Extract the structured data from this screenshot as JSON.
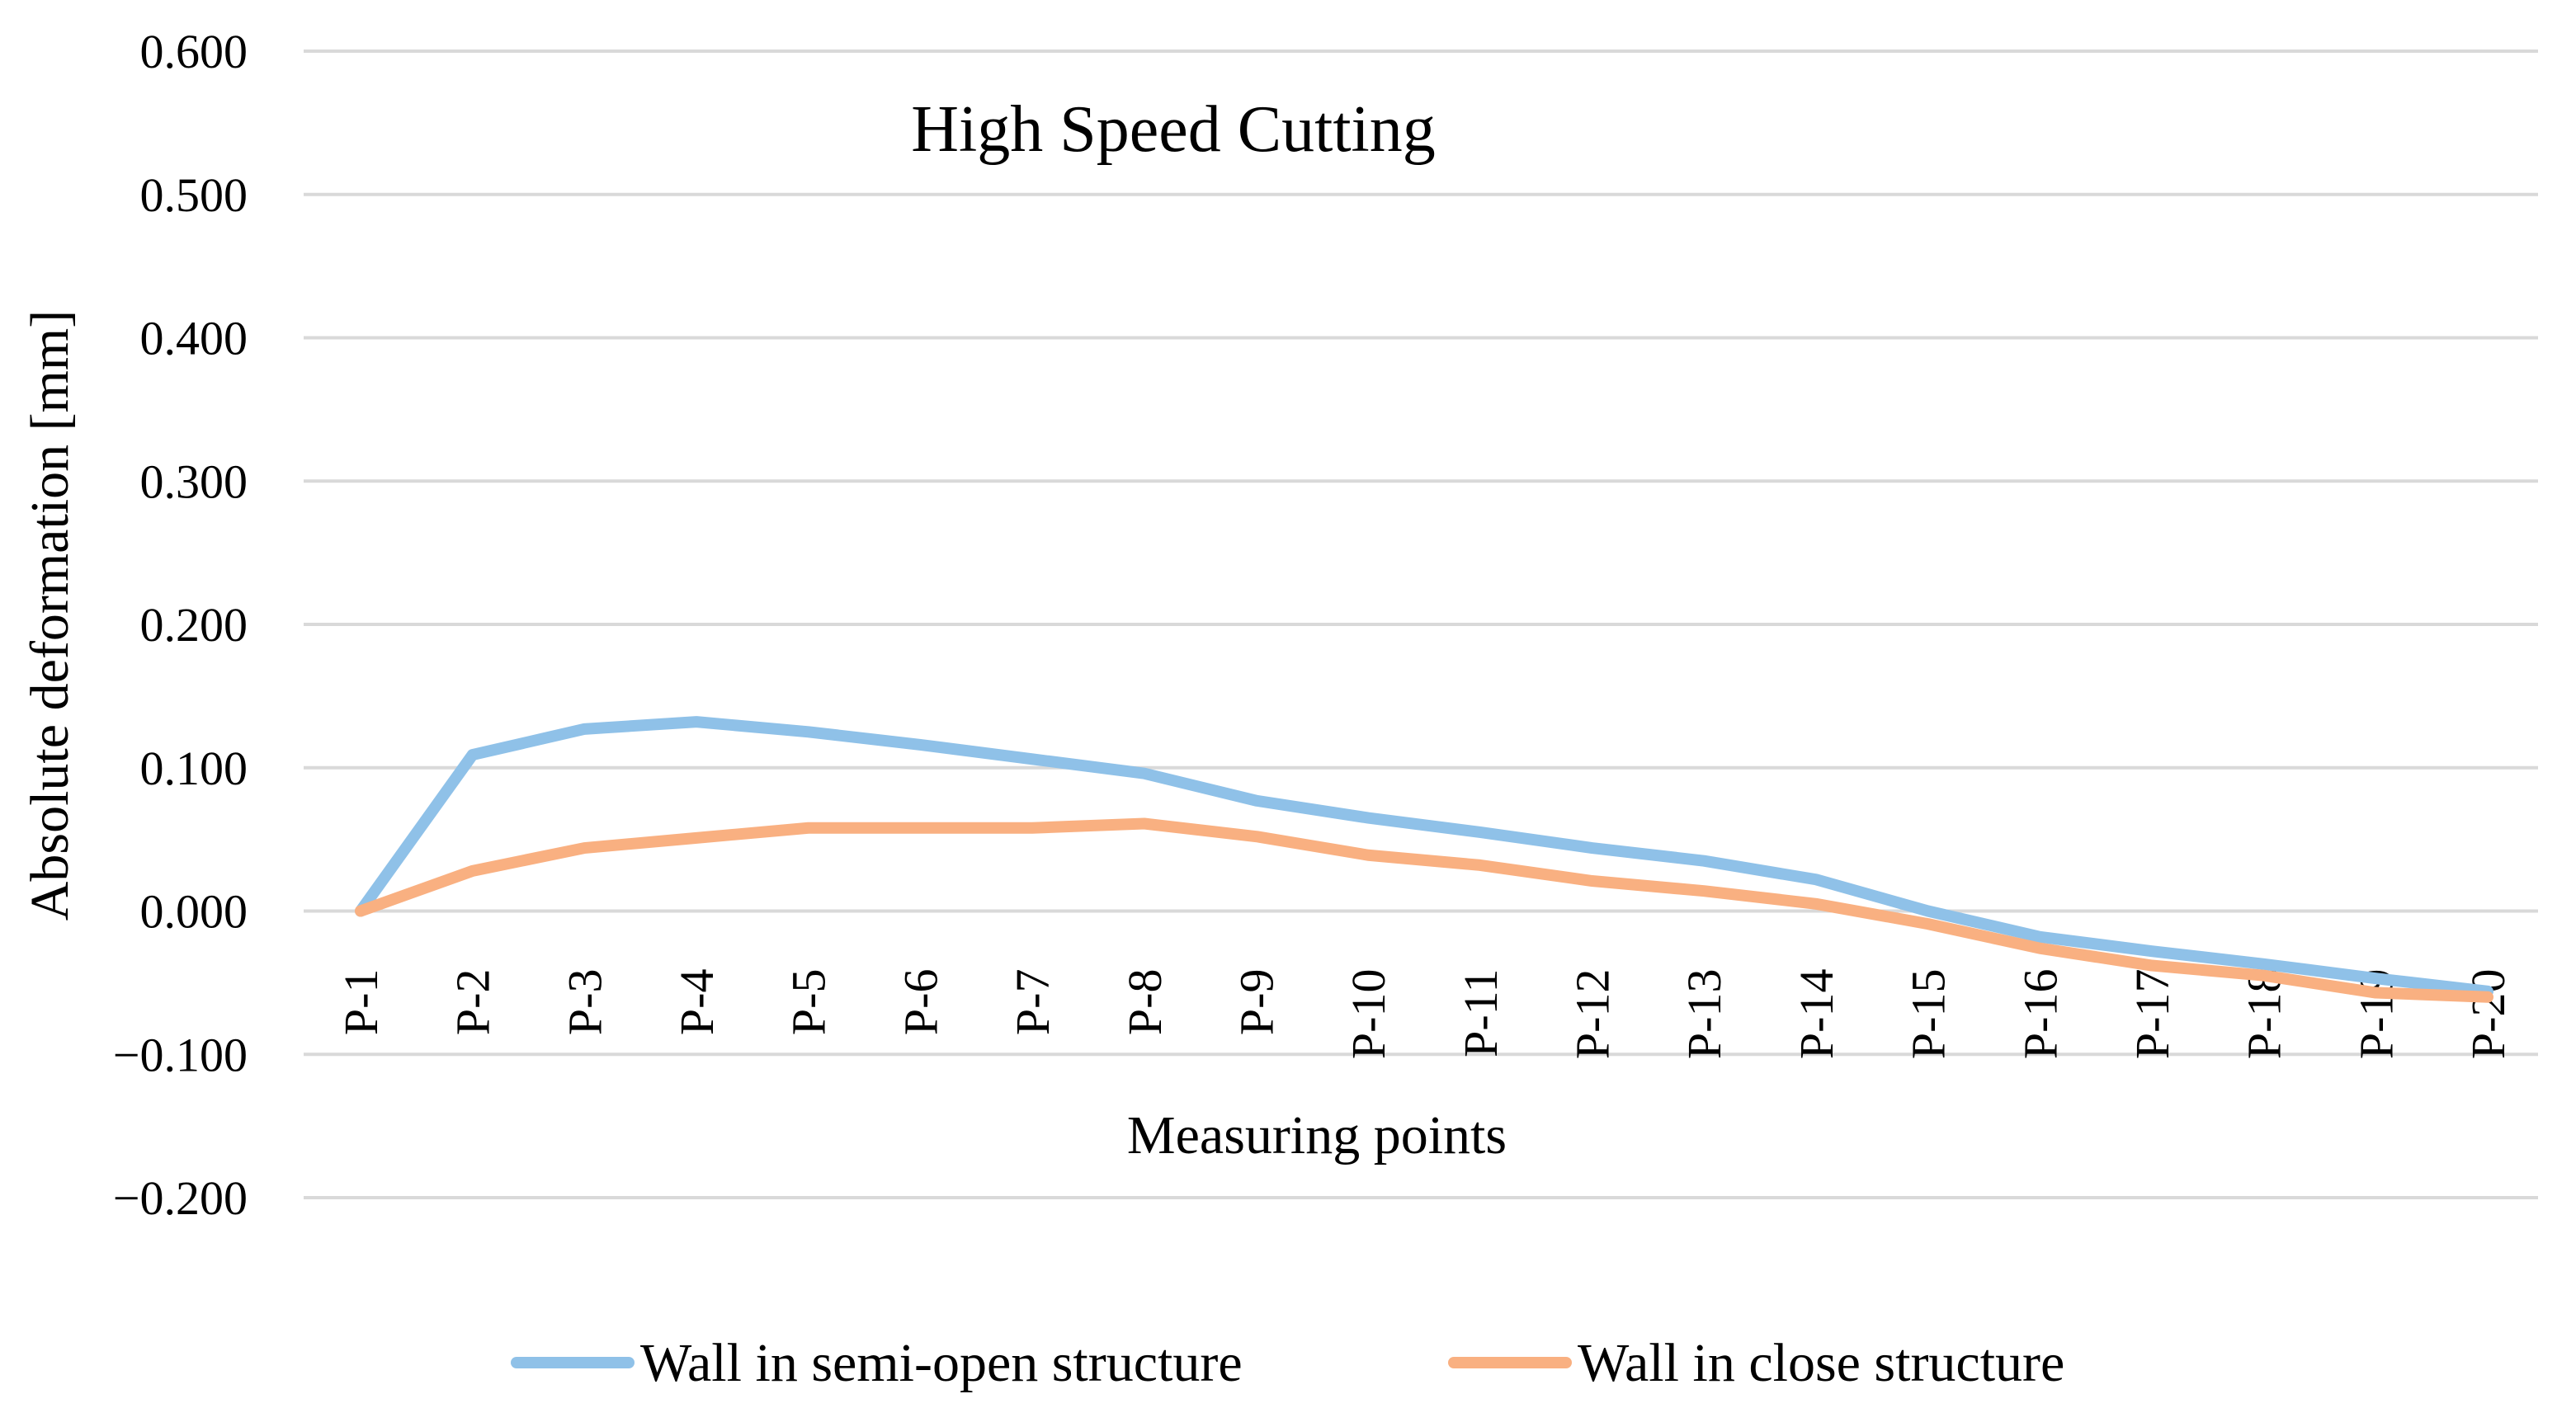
{
  "chart_data": {
    "type": "line",
    "title": "High Speed Cutting",
    "xlabel": "Measuring points",
    "ylabel": "Absolute deformation [mm]",
    "ylim": [
      -0.2,
      0.6
    ],
    "yticks": [
      0.6,
      0.5,
      0.4,
      0.3,
      0.2,
      0.1,
      0.0,
      -0.1,
      -0.2
    ],
    "ytick_labels": [
      "0.600",
      "0.500",
      "0.400",
      "0.300",
      "0.200",
      "0.100",
      "0.000",
      "−0.100",
      "−0.200"
    ],
    "grid": true,
    "legend_position": "bottom",
    "categories": [
      "P-1",
      "P-2",
      "P-3",
      "P-4",
      "P-5",
      "P-6",
      "P-7",
      "P-8",
      "P-9",
      "P-10",
      "P-11",
      "P-12",
      "P-13",
      "P-14",
      "P-15",
      "P-16",
      "P-17",
      "P-18",
      "P-19",
      "P-20"
    ],
    "series": [
      {
        "name": "Wall in semi-open structure",
        "color": "#8fc1e8",
        "values": [
          0.0,
          0.109,
          0.127,
          0.132,
          0.125,
          0.116,
          0.106,
          0.096,
          0.077,
          0.065,
          0.055,
          0.044,
          0.035,
          0.022,
          0.0,
          -0.018,
          -0.028,
          -0.037,
          -0.047,
          -0.056
        ]
      },
      {
        "name": "Wall in close structure",
        "color": "#f9b081",
        "values": [
          0.0,
          0.028,
          0.044,
          0.051,
          0.058,
          0.058,
          0.058,
          0.061,
          0.052,
          0.039,
          0.032,
          0.021,
          0.014,
          0.005,
          -0.009,
          -0.026,
          -0.038,
          -0.045,
          -0.057,
          -0.06
        ]
      }
    ]
  }
}
